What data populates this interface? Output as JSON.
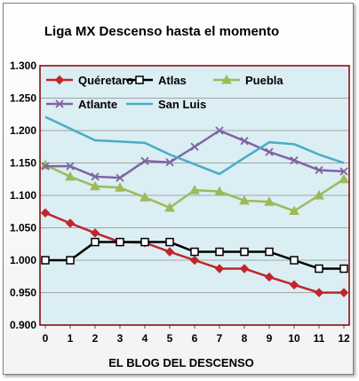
{
  "chart_data": {
    "type": "line",
    "title": "Liga MX Descenso hasta el momento",
    "xlabel": "EL BLOG DEL DESCENSO",
    "ylabel": "",
    "x": [
      0,
      1,
      2,
      3,
      4,
      5,
      6,
      7,
      8,
      9,
      10,
      11,
      12
    ],
    "ylim": [
      0.9,
      1.3
    ],
    "yticks": [
      "0.900",
      "0.950",
      "1.000",
      "1.050",
      "1.100",
      "1.150",
      "1.200",
      "1.250",
      "1.300"
    ],
    "grid": true,
    "legend_position": "top",
    "plot_background": "#daeef3",
    "frame_color": "#7f0000",
    "series": [
      {
        "name": "Quéretaro",
        "color": "#c0262c",
        "marker": "diamond",
        "values": [
          1.073,
          1.057,
          1.042,
          1.028,
          1.027,
          1.013,
          1.0,
          0.987,
          0.987,
          0.974,
          0.962,
          0.95,
          0.95
        ]
      },
      {
        "name": "Atlas",
        "color": "#000000",
        "marker": "square",
        "values": [
          1.0,
          1.0,
          1.028,
          1.028,
          1.028,
          1.028,
          1.013,
          1.013,
          1.013,
          1.013,
          1.0,
          0.987,
          0.987
        ]
      },
      {
        "name": "Puebla",
        "color": "#9bbb59",
        "marker": "triangle",
        "values": [
          1.147,
          1.129,
          1.114,
          1.112,
          1.097,
          1.081,
          1.108,
          1.106,
          1.092,
          1.09,
          1.076,
          1.1,
          1.125
        ]
      },
      {
        "name": "Atlante",
        "color": "#8064a2",
        "marker": "x",
        "values": [
          1.145,
          1.145,
          1.129,
          1.127,
          1.153,
          1.151,
          1.175,
          1.2,
          1.184,
          1.167,
          1.154,
          1.139,
          1.137
        ]
      },
      {
        "name": "San Luis",
        "color": "#4bacc6",
        "marker": "none",
        "values": [
          1.221,
          1.203,
          1.185,
          1.183,
          1.181,
          1.163,
          1.148,
          1.133,
          1.158,
          1.182,
          1.179,
          1.163,
          1.15
        ]
      }
    ]
  }
}
